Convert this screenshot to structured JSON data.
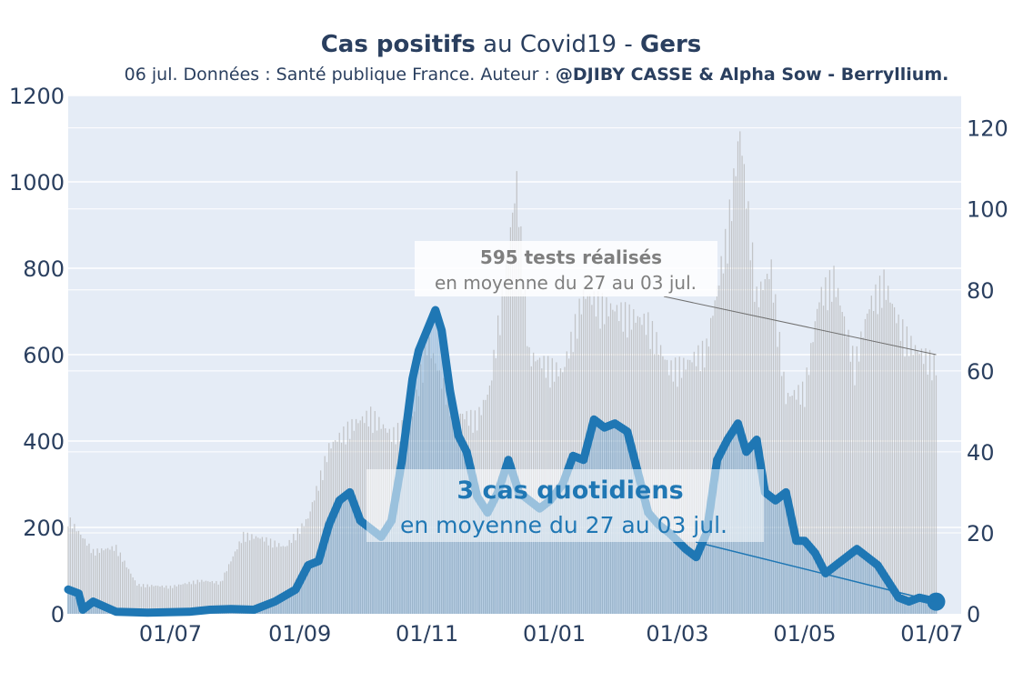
{
  "title": {
    "bold1": "Cas positifs",
    "mid": " au Covid19 - ",
    "bold2": "Gers"
  },
  "subtitle": {
    "normal": "06 jul. Données : Santé publique France. Auteur : ",
    "bold": "@DJIBY CASSE & Alpha Sow - Berryllium."
  },
  "colors": {
    "plot_bg": "#e5ecf6",
    "tests_bar": "#b3b3b3",
    "cases_bar": "#6a9fcb",
    "cases_line": "#1f77b4",
    "text": "#2a3f5f",
    "annotation_tests": "#7f7f7f"
  },
  "chart_data": {
    "type": "bar+line",
    "x_range": [
      "2020-05-13",
      "2021-07-15"
    ],
    "x_tick_labels": [
      "01/07",
      "01/09",
      "01/11",
      "01/01",
      "01/03",
      "01/05",
      "01/07"
    ],
    "y_left": {
      "range": [
        0,
        1200
      ],
      "ticks": [
        0,
        200,
        400,
        600,
        800,
        1000,
        1200
      ]
    },
    "y_right": {
      "range": [
        0,
        128
      ],
      "ticks": [
        0,
        20,
        40,
        60,
        80,
        100,
        120
      ]
    },
    "series": [
      {
        "kind": "bar",
        "axis": "left",
        "role": "tests",
        "points": [
          [
            "2020-05-13",
            230
          ],
          [
            "2020-05-25",
            150
          ],
          [
            "2020-06-05",
            160
          ],
          [
            "2020-06-15",
            70
          ],
          [
            "2020-07-01",
            65
          ],
          [
            "2020-07-15",
            80
          ],
          [
            "2020-07-25",
            75
          ],
          [
            "2020-08-05",
            190
          ],
          [
            "2020-08-15",
            180
          ],
          [
            "2020-08-25",
            160
          ],
          [
            "2020-09-05",
            230
          ],
          [
            "2020-09-15",
            400
          ],
          [
            "2020-09-25",
            450
          ],
          [
            "2020-10-05",
            480
          ],
          [
            "2020-10-15",
            430
          ],
          [
            "2020-10-25",
            470
          ],
          [
            "2020-11-01",
            660
          ],
          [
            "2020-11-08",
            560
          ],
          [
            "2020-11-15",
            480
          ],
          [
            "2020-11-25",
            470
          ],
          [
            "2020-12-01",
            540
          ],
          [
            "2020-12-10",
            880
          ],
          [
            "2020-12-14",
            1040
          ],
          [
            "2020-12-20",
            620
          ],
          [
            "2020-12-28",
            600
          ],
          [
            "2021-01-05",
            580
          ],
          [
            "2021-01-15",
            770
          ],
          [
            "2021-01-25",
            740
          ],
          [
            "2021-02-05",
            720
          ],
          [
            "2021-02-15",
            700
          ],
          [
            "2021-02-25",
            590
          ],
          [
            "2021-03-05",
            600
          ],
          [
            "2021-03-15",
            640
          ],
          [
            "2021-03-25",
            920
          ],
          [
            "2021-03-31",
            1160
          ],
          [
            "2021-04-08",
            760
          ],
          [
            "2021-04-15",
            830
          ],
          [
            "2021-04-22",
            520
          ],
          [
            "2021-05-01",
            540
          ],
          [
            "2021-05-08",
            760
          ],
          [
            "2021-05-15",
            810
          ],
          [
            "2021-05-25",
            600
          ],
          [
            "2021-06-01",
            740
          ],
          [
            "2021-06-08",
            800
          ],
          [
            "2021-06-15",
            700
          ],
          [
            "2021-06-22",
            640
          ],
          [
            "2021-07-03",
            600
          ]
        ]
      },
      {
        "kind": "line",
        "axis": "right",
        "role": "cases",
        "points": [
          [
            "2020-05-13",
            6
          ],
          [
            "2020-05-18",
            5
          ],
          [
            "2020-05-20",
            1
          ],
          [
            "2020-05-25",
            3
          ],
          [
            "2020-06-05",
            0.5
          ],
          [
            "2020-06-20",
            0.3
          ],
          [
            "2020-07-10",
            0.5
          ],
          [
            "2020-07-20",
            1
          ],
          [
            "2020-07-30",
            1.2
          ],
          [
            "2020-08-10",
            1
          ],
          [
            "2020-08-20",
            3
          ],
          [
            "2020-08-30",
            6
          ],
          [
            "2020-09-05",
            12
          ],
          [
            "2020-09-10",
            13
          ],
          [
            "2020-09-15",
            22
          ],
          [
            "2020-09-20",
            28
          ],
          [
            "2020-09-25",
            30
          ],
          [
            "2020-09-30",
            23
          ],
          [
            "2020-10-05",
            21
          ],
          [
            "2020-10-10",
            19
          ],
          [
            "2020-10-15",
            23
          ],
          [
            "2020-10-20",
            38
          ],
          [
            "2020-10-25",
            58
          ],
          [
            "2020-10-28",
            65
          ],
          [
            "2020-11-01",
            70
          ],
          [
            "2020-11-05",
            75
          ],
          [
            "2020-11-08",
            70
          ],
          [
            "2020-11-12",
            55
          ],
          [
            "2020-11-16",
            44
          ],
          [
            "2020-11-20",
            40
          ],
          [
            "2020-11-25",
            29
          ],
          [
            "2020-11-30",
            25
          ],
          [
            "2020-12-05",
            30
          ],
          [
            "2020-12-10",
            38
          ],
          [
            "2020-12-15",
            30
          ],
          [
            "2020-12-20",
            28
          ],
          [
            "2020-12-25",
            26
          ],
          [
            "2020-12-30",
            28
          ],
          [
            "2021-01-05",
            32
          ],
          [
            "2021-01-10",
            39
          ],
          [
            "2021-01-15",
            38
          ],
          [
            "2021-01-20",
            48
          ],
          [
            "2021-01-25",
            46
          ],
          [
            "2021-01-30",
            47
          ],
          [
            "2021-02-05",
            45
          ],
          [
            "2021-02-10",
            35
          ],
          [
            "2021-02-15",
            25
          ],
          [
            "2021-02-20",
            22
          ],
          [
            "2021-02-25",
            20
          ],
          [
            "2021-03-01",
            18
          ],
          [
            "2021-03-05",
            16
          ],
          [
            "2021-03-10",
            14
          ],
          [
            "2021-03-15",
            20
          ],
          [
            "2021-03-20",
            38
          ],
          [
            "2021-03-25",
            43
          ],
          [
            "2021-03-30",
            47
          ],
          [
            "2021-04-03",
            40
          ],
          [
            "2021-04-08",
            43
          ],
          [
            "2021-04-12",
            30
          ],
          [
            "2021-04-17",
            28
          ],
          [
            "2021-04-22",
            30
          ],
          [
            "2021-04-27",
            18
          ],
          [
            "2021-05-01",
            18
          ],
          [
            "2021-05-06",
            15
          ],
          [
            "2021-05-11",
            10
          ],
          [
            "2021-05-16",
            12
          ],
          [
            "2021-05-21",
            14
          ],
          [
            "2021-05-26",
            16
          ],
          [
            "2021-05-31",
            14
          ],
          [
            "2021-06-05",
            12
          ],
          [
            "2021-06-10",
            8
          ],
          [
            "2021-06-15",
            4
          ],
          [
            "2021-06-20",
            3
          ],
          [
            "2021-06-25",
            4
          ],
          [
            "2021-07-03",
            3
          ]
        ]
      }
    ],
    "annotations": [
      {
        "role": "tests",
        "bold": "595 tests réalisés",
        "text": "en moyenne du 27 au 03 jul.",
        "target_x": "2021-07-03",
        "target_y_left": 600
      },
      {
        "role": "cases",
        "bold": "3 cas quotidiens",
        "text": "en moyenne du 27 au 03 jul.",
        "target_x": "2021-07-03",
        "target_y_right": 3
      }
    ]
  }
}
